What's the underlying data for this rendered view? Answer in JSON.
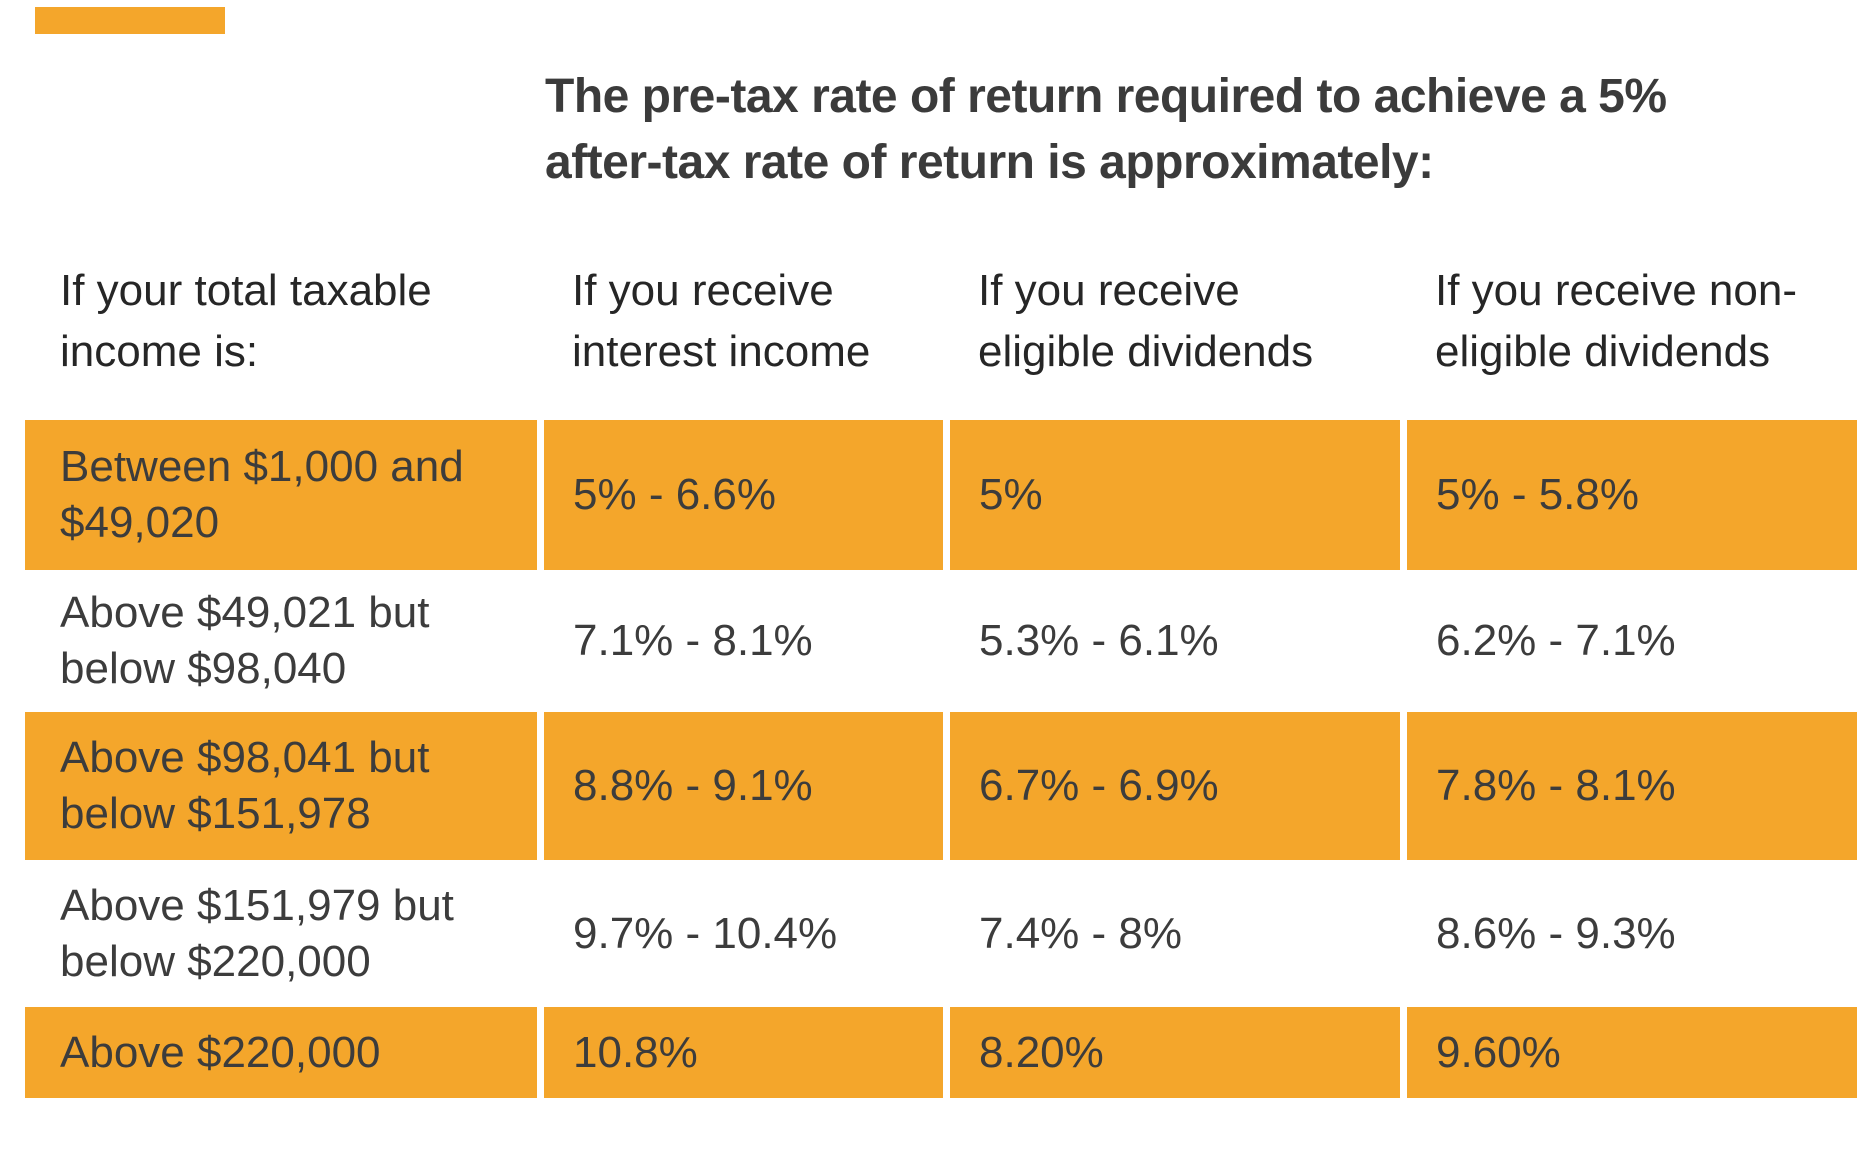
{
  "colors": {
    "highlight_orange": "#F4A62B",
    "title_text": "#3B3B3B",
    "header_text": "#262626",
    "cell_text": "#3C3C3C",
    "background": "#FFFFFF"
  },
  "display": {
    "title_lines": [
      "The pre-tax rate of return required to achieve a 5%",
      "after-tax rate of return is approximately:"
    ],
    "headers": [
      {
        "lines": [
          "If your total taxable",
          "income is:"
        ]
      },
      {
        "lines": [
          "If you receive",
          "interest income"
        ]
      },
      {
        "lines": [
          "If you receive",
          "eligible dividends"
        ]
      },
      {
        "lines": [
          "If you receive non-",
          "eligible dividends"
        ]
      }
    ],
    "rows": [
      {
        "label_lines": [
          "Between $1,000 and",
          "$49,020"
        ],
        "values": [
          "5% - 6.6%",
          "5%",
          "5% - 5.8%"
        ],
        "highlighted": true
      },
      {
        "label_lines": [
          "Above $49,021 but",
          "below $98,040"
        ],
        "values": [
          "7.1% - 8.1%",
          "5.3% - 6.1%",
          "6.2% - 7.1%"
        ],
        "highlighted": false
      },
      {
        "label_lines": [
          "Above $98,041 but",
          "below $151,978"
        ],
        "values": [
          "8.8% - 9.1%",
          "6.7% - 6.9%",
          "7.8% - 8.1%"
        ],
        "highlighted": true
      },
      {
        "label_lines": [
          "Above $151,979 but",
          "below $220,000"
        ],
        "values": [
          "9.7% - 10.4%",
          "7.4% - 8%",
          "8.6% - 9.3%"
        ],
        "highlighted": false
      },
      {
        "label_lines": [
          "Above $220,000"
        ],
        "values": [
          "10.8%",
          "8.20%",
          "9.60%"
        ],
        "highlighted": true
      }
    ]
  },
  "chart_data": {
    "type": "table",
    "title": "The pre-tax rate of return required to achieve a 5% after-tax rate of return is approximately:",
    "columns": [
      "If your total taxable income is:",
      "If you receive interest income",
      "If you receive eligible dividends",
      "If you receive non-eligible dividends"
    ],
    "rows": [
      [
        "Between $1,000 and $49,020",
        "5% - 6.6%",
        "5%",
        "5% - 5.8%"
      ],
      [
        "Above $49,021 but below $98,040",
        "7.1% - 8.1%",
        "5.3% - 6.1%",
        "6.2% - 7.1%"
      ],
      [
        "Above $98,041 but below $151,978",
        "8.8% - 9.1%",
        "6.7% - 6.9%",
        "7.8% - 8.1%"
      ],
      [
        "Above $151,979 but below $220,000",
        "9.7% - 10.4%",
        "7.4% - 8%",
        "8.6% - 9.3%"
      ],
      [
        "Above $220,000",
        "10.8%",
        "8.20%",
        "9.60%"
      ]
    ],
    "highlighted_rows": [
      0,
      2,
      4
    ],
    "highlight_color": "#F4A62B",
    "legend_position": "none",
    "grid": false
  }
}
